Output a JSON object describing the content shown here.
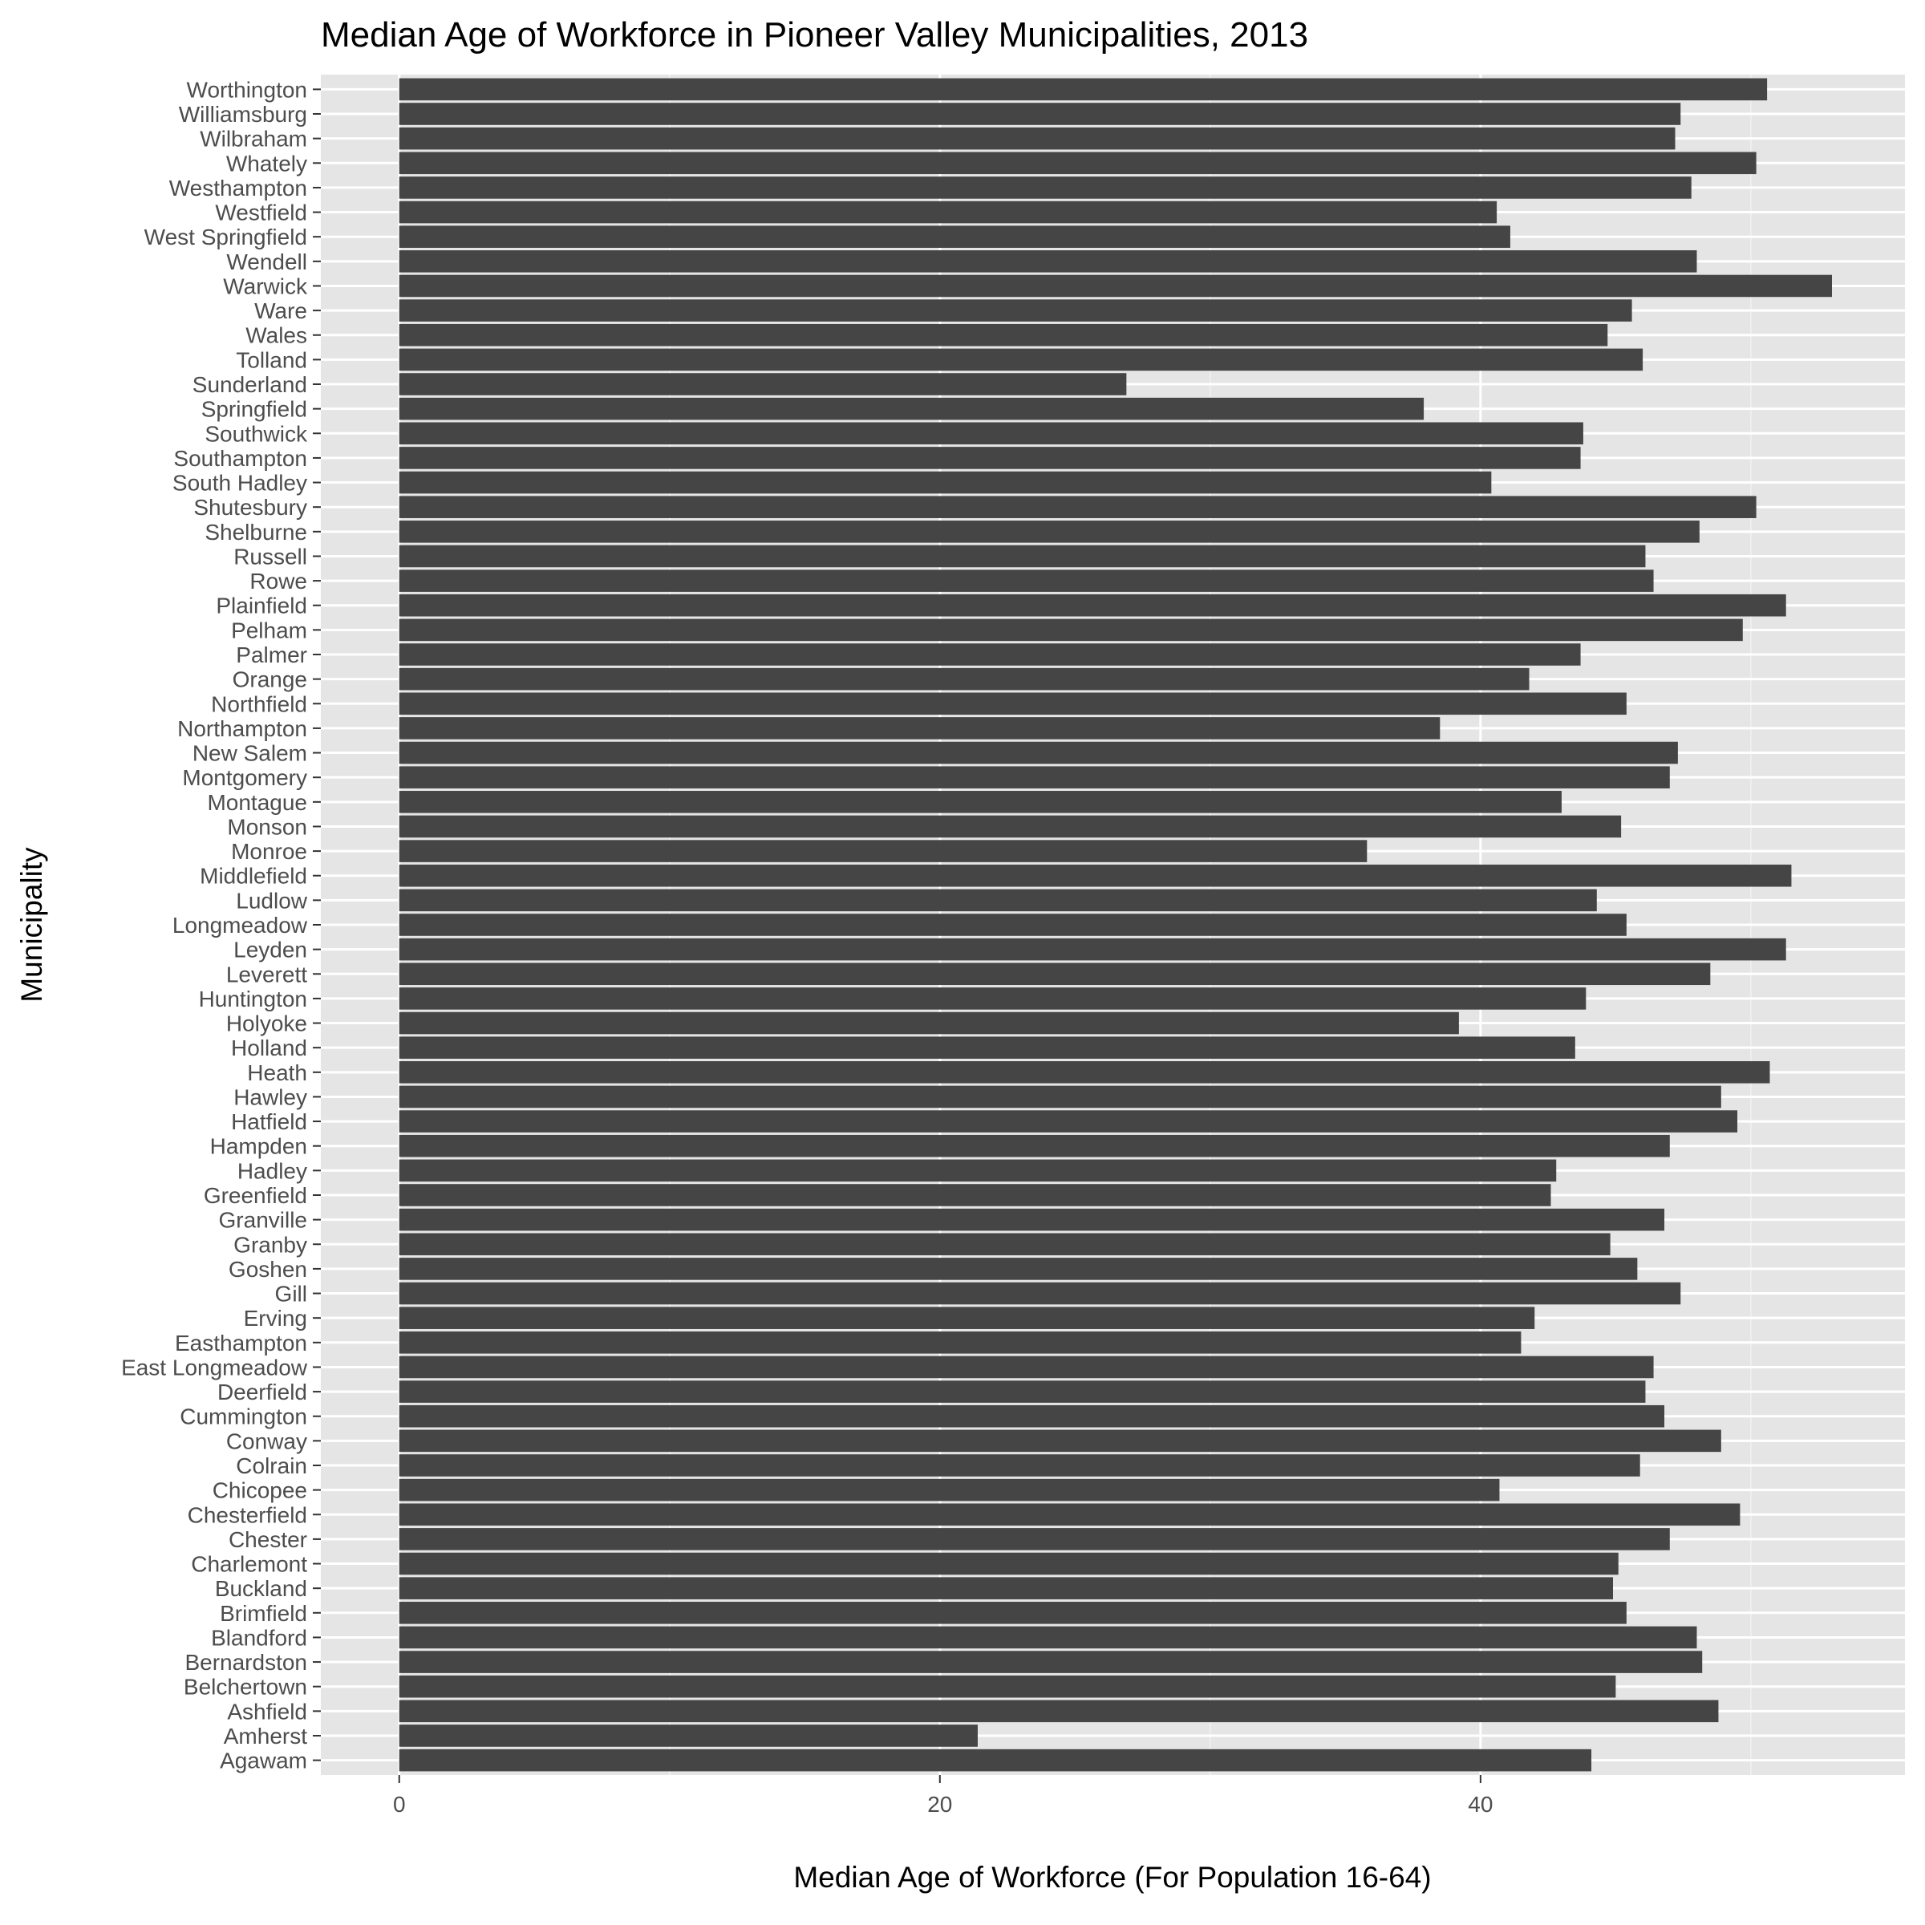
{
  "chart_data": {
    "type": "bar",
    "orientation": "horizontal",
    "title": "Median Age of Workforce in Pioneer Valley Municipalities, 2013",
    "xlabel": "Median Age of Workforce (For Population 16-64)",
    "ylabel": "Municipality",
    "xlim": [
      -2.9,
      55.7
    ],
    "xticks": [
      0,
      20,
      40
    ],
    "grid": true,
    "bar_color": "#454545",
    "panel_color": "#e5e5e5",
    "categories": [
      "Agawam",
      "Amherst",
      "Ashfield",
      "Belchertown",
      "Bernardston",
      "Blandford",
      "Brimfield",
      "Buckland",
      "Charlemont",
      "Chester",
      "Chesterfield",
      "Chicopee",
      "Colrain",
      "Conway",
      "Cummington",
      "Deerfield",
      "East Longmeadow",
      "Easthampton",
      "Erving",
      "Gill",
      "Goshen",
      "Granby",
      "Granville",
      "Greenfield",
      "Hadley",
      "Hampden",
      "Hatfield",
      "Hawley",
      "Heath",
      "Holland",
      "Holyoke",
      "Huntington",
      "Leverett",
      "Leyden",
      "Longmeadow",
      "Ludlow",
      "Middlefield",
      "Monroe",
      "Monson",
      "Montague",
      "Montgomery",
      "New Salem",
      "Northampton",
      "Northfield",
      "Orange",
      "Palmer",
      "Pelham",
      "Plainfield",
      "Rowe",
      "Russell",
      "Shelburne",
      "Shutesbury",
      "South Hadley",
      "Southampton",
      "Southwick",
      "Springfield",
      "Sunderland",
      "Tolland",
      "Wales",
      "Ware",
      "Warwick",
      "Wendell",
      "West Springfield",
      "Westfield",
      "Westhampton",
      "Whately",
      "Wilbraham",
      "Williamsburg",
      "Worthington"
    ],
    "values": [
      44.1,
      21.4,
      48.8,
      45.0,
      48.2,
      48.0,
      45.4,
      44.9,
      45.1,
      47.0,
      49.6,
      40.7,
      45.9,
      48.9,
      46.8,
      46.1,
      46.4,
      41.5,
      42.0,
      47.4,
      45.8,
      44.8,
      46.8,
      42.6,
      42.8,
      47.0,
      49.5,
      48.9,
      50.7,
      43.5,
      39.2,
      43.9,
      48.5,
      51.3,
      45.4,
      44.3,
      51.5,
      35.8,
      45.2,
      43.0,
      47.0,
      47.3,
      38.5,
      45.4,
      41.8,
      43.7,
      49.7,
      51.3,
      46.4,
      46.1,
      48.1,
      50.2,
      40.4,
      43.7,
      43.8,
      37.9,
      26.9,
      46.0,
      44.7,
      45.6,
      53.0,
      48.0,
      41.1,
      40.6,
      47.8,
      50.2,
      47.2,
      47.4,
      50.6
    ]
  }
}
